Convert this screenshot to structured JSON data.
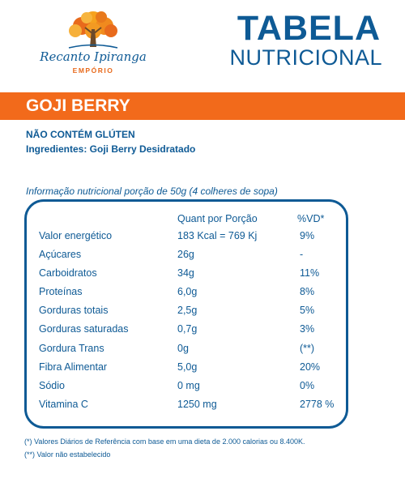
{
  "brand": {
    "name": "Recanto Ipiranga",
    "subtitle": "EMPÓRIO",
    "colors": {
      "blue": "#0e5a95",
      "orange": "#f26a1b"
    }
  },
  "title": {
    "main": "TABELA",
    "sub": "NUTRICIONAL"
  },
  "product": "GOJI BERRY",
  "gluten_note": "NÃO CONTÉM GLÚTEN",
  "ingredients": "Ingredientes: Goji Berry Desidratado",
  "portion_info": "Informação nutricional porção de 50g (4 colheres de sopa)",
  "table": {
    "headers": {
      "quantity": "Quant por Porção",
      "vd": "%VD*"
    },
    "rows": [
      {
        "name": "Valor energético",
        "qty": "183 Kcal = 769 Kj",
        "vd": "9%"
      },
      {
        "name": "Açúcares",
        "qty": "26g",
        "vd": "-"
      },
      {
        "name": "Carboidratos",
        "qty": "34g",
        "vd": "11%"
      },
      {
        "name": "Proteínas",
        "qty": "6,0g",
        "vd": "8%"
      },
      {
        "name": "Gorduras totais",
        "qty": "2,5g",
        "vd": "5%"
      },
      {
        "name": "Gorduras saturadas",
        "qty": "0,7g",
        "vd": "3%"
      },
      {
        "name": "Gordura Trans",
        "qty": "0g",
        "vd": "(**)"
      },
      {
        "name": "Fibra Alimentar",
        "qty": "5,0g",
        "vd": "20%"
      },
      {
        "name": "Sódio",
        "qty": "0 mg",
        "vd": "0%"
      },
      {
        "name": "Vitamina C",
        "qty": "1250 mg",
        "vd": "2778 %"
      }
    ]
  },
  "footnotes": [
    "(*) Valores Diários de Referência com base em uma dieta de 2.000 calorias ou 8.400K.",
    "(**) Valor não estabelecido"
  ]
}
